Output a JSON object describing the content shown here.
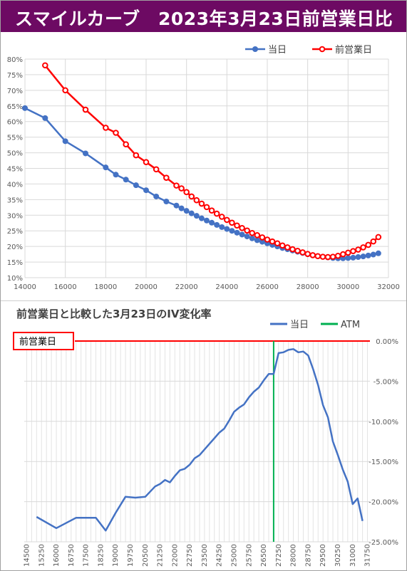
{
  "header": {
    "title": "スマイルカーブ　2023年3月23日前営業日比"
  },
  "colors": {
    "banner": "#6d0a63",
    "today": "#4472c4",
    "prev": "#ff0000",
    "atm": "#00b050"
  },
  "chart_data": [
    {
      "type": "line",
      "title": "",
      "xlabel": "",
      "ylabel": "",
      "xlim": [
        14000,
        32000
      ],
      "ylim": [
        0.1,
        0.8
      ],
      "x_ticks": [
        "14000",
        "16000",
        "18000",
        "20000",
        "22000",
        "24000",
        "26000",
        "28000",
        "30000",
        "32000"
      ],
      "y_ticks": [
        "10%",
        "15%",
        "20%",
        "25%",
        "30%",
        "35%",
        "40%",
        "45%",
        "50%",
        "55%",
        "60%",
        "65%",
        "70%",
        "75%",
        "80%"
      ],
      "legend_position": "top-right",
      "grid": true,
      "series": [
        {
          "name": "当日",
          "color": "#4472c4",
          "x": [
            14000,
            15000,
            16000,
            17000,
            18000,
            18500,
            19000,
            19500,
            20000,
            20500,
            21000,
            21500,
            21750,
            22000,
            22250,
            22500,
            22750,
            23000,
            23250,
            23500,
            23750,
            24000,
            24250,
            24500,
            24750,
            25000,
            25250,
            25500,
            25750,
            26000,
            26250,
            26500,
            26750,
            27000,
            27250,
            27500,
            27750,
            28000,
            28250,
            28500,
            28750,
            29000,
            29250,
            29500,
            29750,
            30000,
            30250,
            30500,
            30750,
            31000,
            31250,
            31500
          ],
          "y": [
            0.643,
            0.611,
            0.537,
            0.498,
            0.453,
            0.43,
            0.414,
            0.396,
            0.38,
            0.36,
            0.344,
            0.331,
            0.322,
            0.314,
            0.306,
            0.298,
            0.29,
            0.283,
            0.276,
            0.269,
            0.262,
            0.256,
            0.25,
            0.244,
            0.238,
            0.232,
            0.226,
            0.22,
            0.215,
            0.21,
            0.205,
            0.2,
            0.195,
            0.191,
            0.187,
            0.183,
            0.179,
            0.175,
            0.172,
            0.169,
            0.167,
            0.165,
            0.163,
            0.162,
            0.162,
            0.163,
            0.164,
            0.166,
            0.168,
            0.171,
            0.174,
            0.178
          ]
        },
        {
          "name": "前営業日",
          "color": "#ff0000",
          "x": [
            15000,
            16000,
            17000,
            18000,
            18500,
            19000,
            19500,
            20000,
            20500,
            21000,
            21500,
            21750,
            22000,
            22250,
            22500,
            22750,
            23000,
            23250,
            23500,
            23750,
            24000,
            24250,
            24500,
            24750,
            25000,
            25250,
            25500,
            25750,
            26000,
            26250,
            26500,
            26750,
            27000,
            27250,
            27500,
            27750,
            28000,
            28250,
            28500,
            28750,
            29000,
            29250,
            29500,
            29750,
            30000,
            30250,
            30500,
            30750,
            31000,
            31250,
            31500
          ],
          "y": [
            0.78,
            0.7,
            0.638,
            0.58,
            0.564,
            0.527,
            0.492,
            0.47,
            0.447,
            0.42,
            0.395,
            0.386,
            0.374,
            0.36,
            0.348,
            0.337,
            0.326,
            0.315,
            0.305,
            0.295,
            0.285,
            0.276,
            0.267,
            0.259,
            0.251,
            0.243,
            0.236,
            0.229,
            0.222,
            0.216,
            0.21,
            0.203,
            0.197,
            0.191,
            0.186,
            0.181,
            0.176,
            0.172,
            0.169,
            0.167,
            0.166,
            0.167,
            0.17,
            0.175,
            0.18,
            0.185,
            0.19,
            0.197,
            0.205,
            0.216,
            0.23
          ]
        }
      ]
    },
    {
      "type": "line",
      "title": "前営業日と比較した3月23日のIV変化率",
      "xlabel": "",
      "ylabel": "",
      "ylim": [
        -0.25,
        0.0
      ],
      "y_ticks": [
        "0.00%",
        "-5.00%",
        "-10.00%",
        "-15.00%",
        "-20.00%",
        "-25.00%"
      ],
      "x_ticks": [
        "14500",
        "15250",
        "16000",
        "16750",
        "17500",
        "18250",
        "19000",
        "19750",
        "20500",
        "21250",
        "22000",
        "22750",
        "23500",
        "24250",
        "25000",
        "25750",
        "26500",
        "27250",
        "28000",
        "28750",
        "29500",
        "30250",
        "31000",
        "31750"
      ],
      "legend_position": "top-right",
      "atm_label": "ATM",
      "atm_x": 27000,
      "zero_line_label": "前営業日",
      "series": [
        {
          "name": "当日",
          "color": "#4472c4",
          "x": [
            15000,
            16000,
            17000,
            18000,
            18500,
            19000,
            19500,
            20000,
            20500,
            21000,
            21250,
            21500,
            21750,
            22000,
            22250,
            22500,
            22750,
            23000,
            23250,
            23500,
            23750,
            24000,
            24250,
            24500,
            24750,
            25000,
            25250,
            25500,
            25750,
            26000,
            26250,
            26500,
            26750,
            27000,
            27250,
            27500,
            27750,
            28000,
            28250,
            28500,
            28750,
            29000,
            29250,
            29500,
            29750,
            30000,
            30250,
            30500,
            30750,
            31000,
            31250,
            31500
          ],
          "y": [
            -0.219,
            -0.233,
            -0.22,
            -0.22,
            -0.236,
            -0.214,
            -0.194,
            -0.195,
            -0.194,
            -0.181,
            -0.178,
            -0.173,
            -0.176,
            -0.168,
            -0.161,
            -0.159,
            -0.154,
            -0.146,
            -0.142,
            -0.135,
            -0.128,
            -0.121,
            -0.114,
            -0.109,
            -0.099,
            -0.088,
            -0.083,
            -0.079,
            -0.07,
            -0.063,
            -0.058,
            -0.049,
            -0.041,
            -0.041,
            -0.015,
            -0.014,
            -0.011,
            -0.01,
            -0.014,
            -0.013,
            -0.018,
            -0.035,
            -0.055,
            -0.08,
            -0.095,
            -0.125,
            -0.142,
            -0.16,
            -0.175,
            -0.203,
            -0.196,
            -0.224
          ]
        }
      ]
    }
  ]
}
